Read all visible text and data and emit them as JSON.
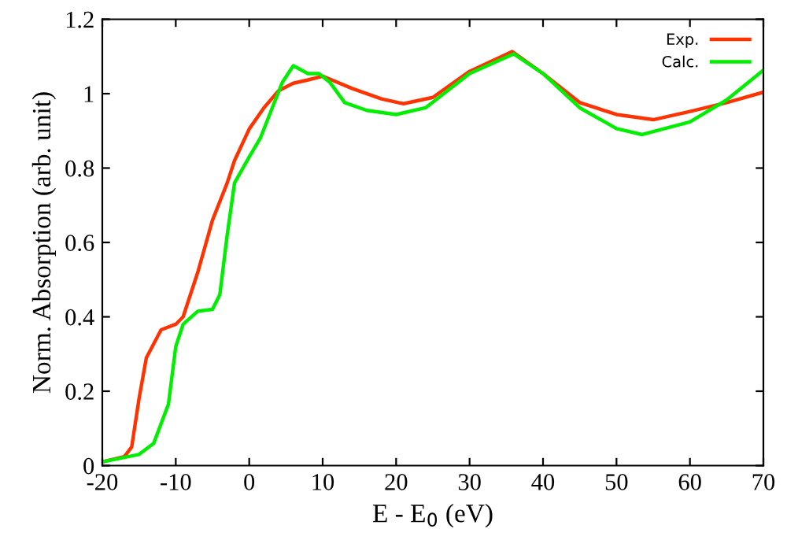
{
  "chart_data": {
    "type": "line",
    "xlabel": "E - E$_{0}$ (eV)",
    "ylabel": "Norm. Absorption (arb. unit)",
    "xlim": [
      -20,
      70
    ],
    "ylim": [
      0,
      1.2
    ],
    "xticks": [
      -20,
      -10,
      0,
      10,
      20,
      30,
      40,
      50,
      60,
      70
    ],
    "yticks": [
      0,
      0.2,
      0.4,
      0.6,
      0.8,
      1,
      1.2
    ],
    "grid": false,
    "legend": "top right",
    "marker": "none",
    "line_style": "solid",
    "series": [
      {
        "name": "Exp.",
        "color": "#ff3300",
        "x": [
          -20,
          -17,
          -16,
          -15,
          -14,
          -12,
          -10,
          -9,
          -7,
          -5,
          -3,
          -2,
          0,
          2,
          4,
          6,
          8,
          10,
          14,
          18,
          21,
          25,
          30,
          35.8,
          40,
          45,
          50,
          55,
          60,
          65,
          70
        ],
        "values": [
          0.01,
          0.024,
          0.05,
          0.18,
          0.29,
          0.365,
          0.38,
          0.4,
          0.52,
          0.66,
          0.76,
          0.82,
          0.905,
          0.962,
          1.008,
          1.028,
          1.037,
          1.047,
          1.014,
          0.986,
          0.973,
          0.99,
          1.06,
          1.113,
          1.054,
          0.976,
          0.944,
          0.93,
          0.952,
          0.976,
          1.004
        ]
      },
      {
        "name": "Calc.",
        "color": "#00ee00",
        "x": [
          -20,
          -15,
          -13,
          -11,
          -10,
          -9,
          -7,
          -5,
          -4,
          -3,
          -2,
          0,
          1.5,
          3,
          4.5,
          6,
          8,
          9.5,
          11,
          13,
          16,
          20,
          24,
          30,
          36,
          40,
          45,
          50,
          53.5,
          60,
          65,
          70
        ],
        "values": [
          0.01,
          0.03,
          0.06,
          0.165,
          0.32,
          0.38,
          0.415,
          0.42,
          0.46,
          0.62,
          0.76,
          0.83,
          0.88,
          0.955,
          1.03,
          1.075,
          1.054,
          1.054,
          1.03,
          0.976,
          0.955,
          0.944,
          0.962,
          1.054,
          1.107,
          1.054,
          0.962,
          0.906,
          0.89,
          0.924,
          0.983,
          1.063
        ]
      }
    ]
  }
}
